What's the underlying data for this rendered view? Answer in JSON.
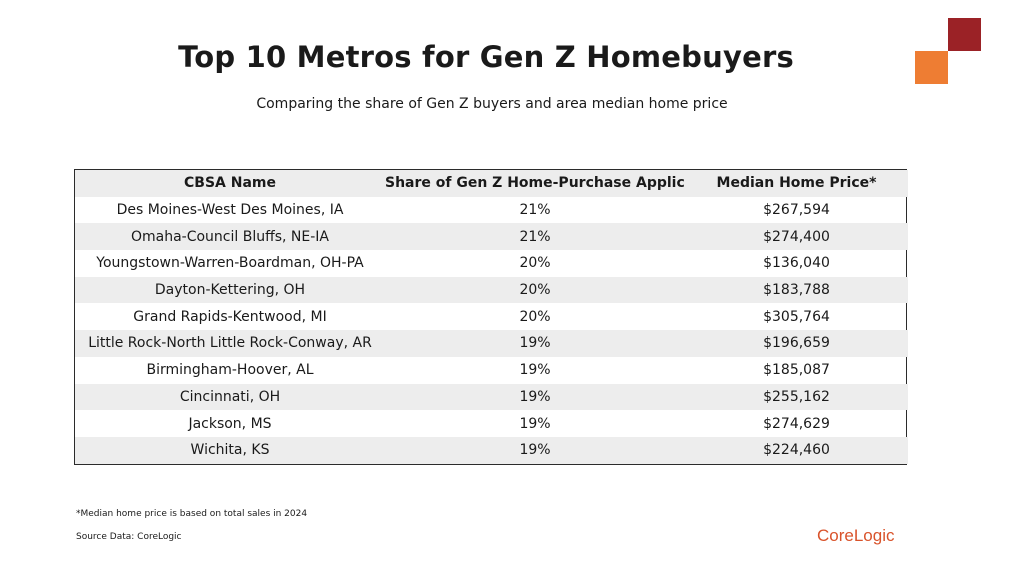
{
  "colors": {
    "accent_dark": "#9b2226",
    "accent_orange": "#ee7d33",
    "brand": "#d9532b"
  },
  "header": {
    "title": "Top 10 Metros for Gen Z Homebuyers",
    "subtitle": "Comparing the share of Gen Z buyers and area median home price"
  },
  "table": {
    "columns": [
      "CBSA Name",
      "Share of Gen Z Home-Purchase Applicants",
      "Median Home Price*"
    ],
    "rows": [
      [
        "Des Moines-West Des Moines, IA",
        "21%",
        "$267,594"
      ],
      [
        "Omaha-Council Bluffs, NE-IA",
        "21%",
        "$274,400"
      ],
      [
        "Youngstown-Warren-Boardman, OH-PA",
        "20%",
        "$136,040"
      ],
      [
        "Dayton-Kettering, OH",
        "20%",
        "$183,788"
      ],
      [
        "Grand Rapids-Kentwood, MI",
        "20%",
        "$305,764"
      ],
      [
        "Little Rock-North Little Rock-Conway, AR",
        "19%",
        "$196,659"
      ],
      [
        "Birmingham-Hoover, AL",
        "19%",
        "$185,087"
      ],
      [
        "Cincinnati, OH",
        "19%",
        "$255,162"
      ],
      [
        "Jackson, MS",
        "19%",
        "$274,629"
      ],
      [
        "Wichita, KS",
        "19%",
        "$224,460"
      ]
    ]
  },
  "footer": {
    "footnote": "*Median home price is based on total sales in 2024",
    "source": "Source Data: CoreLogic",
    "brand": "CoreLogic"
  }
}
